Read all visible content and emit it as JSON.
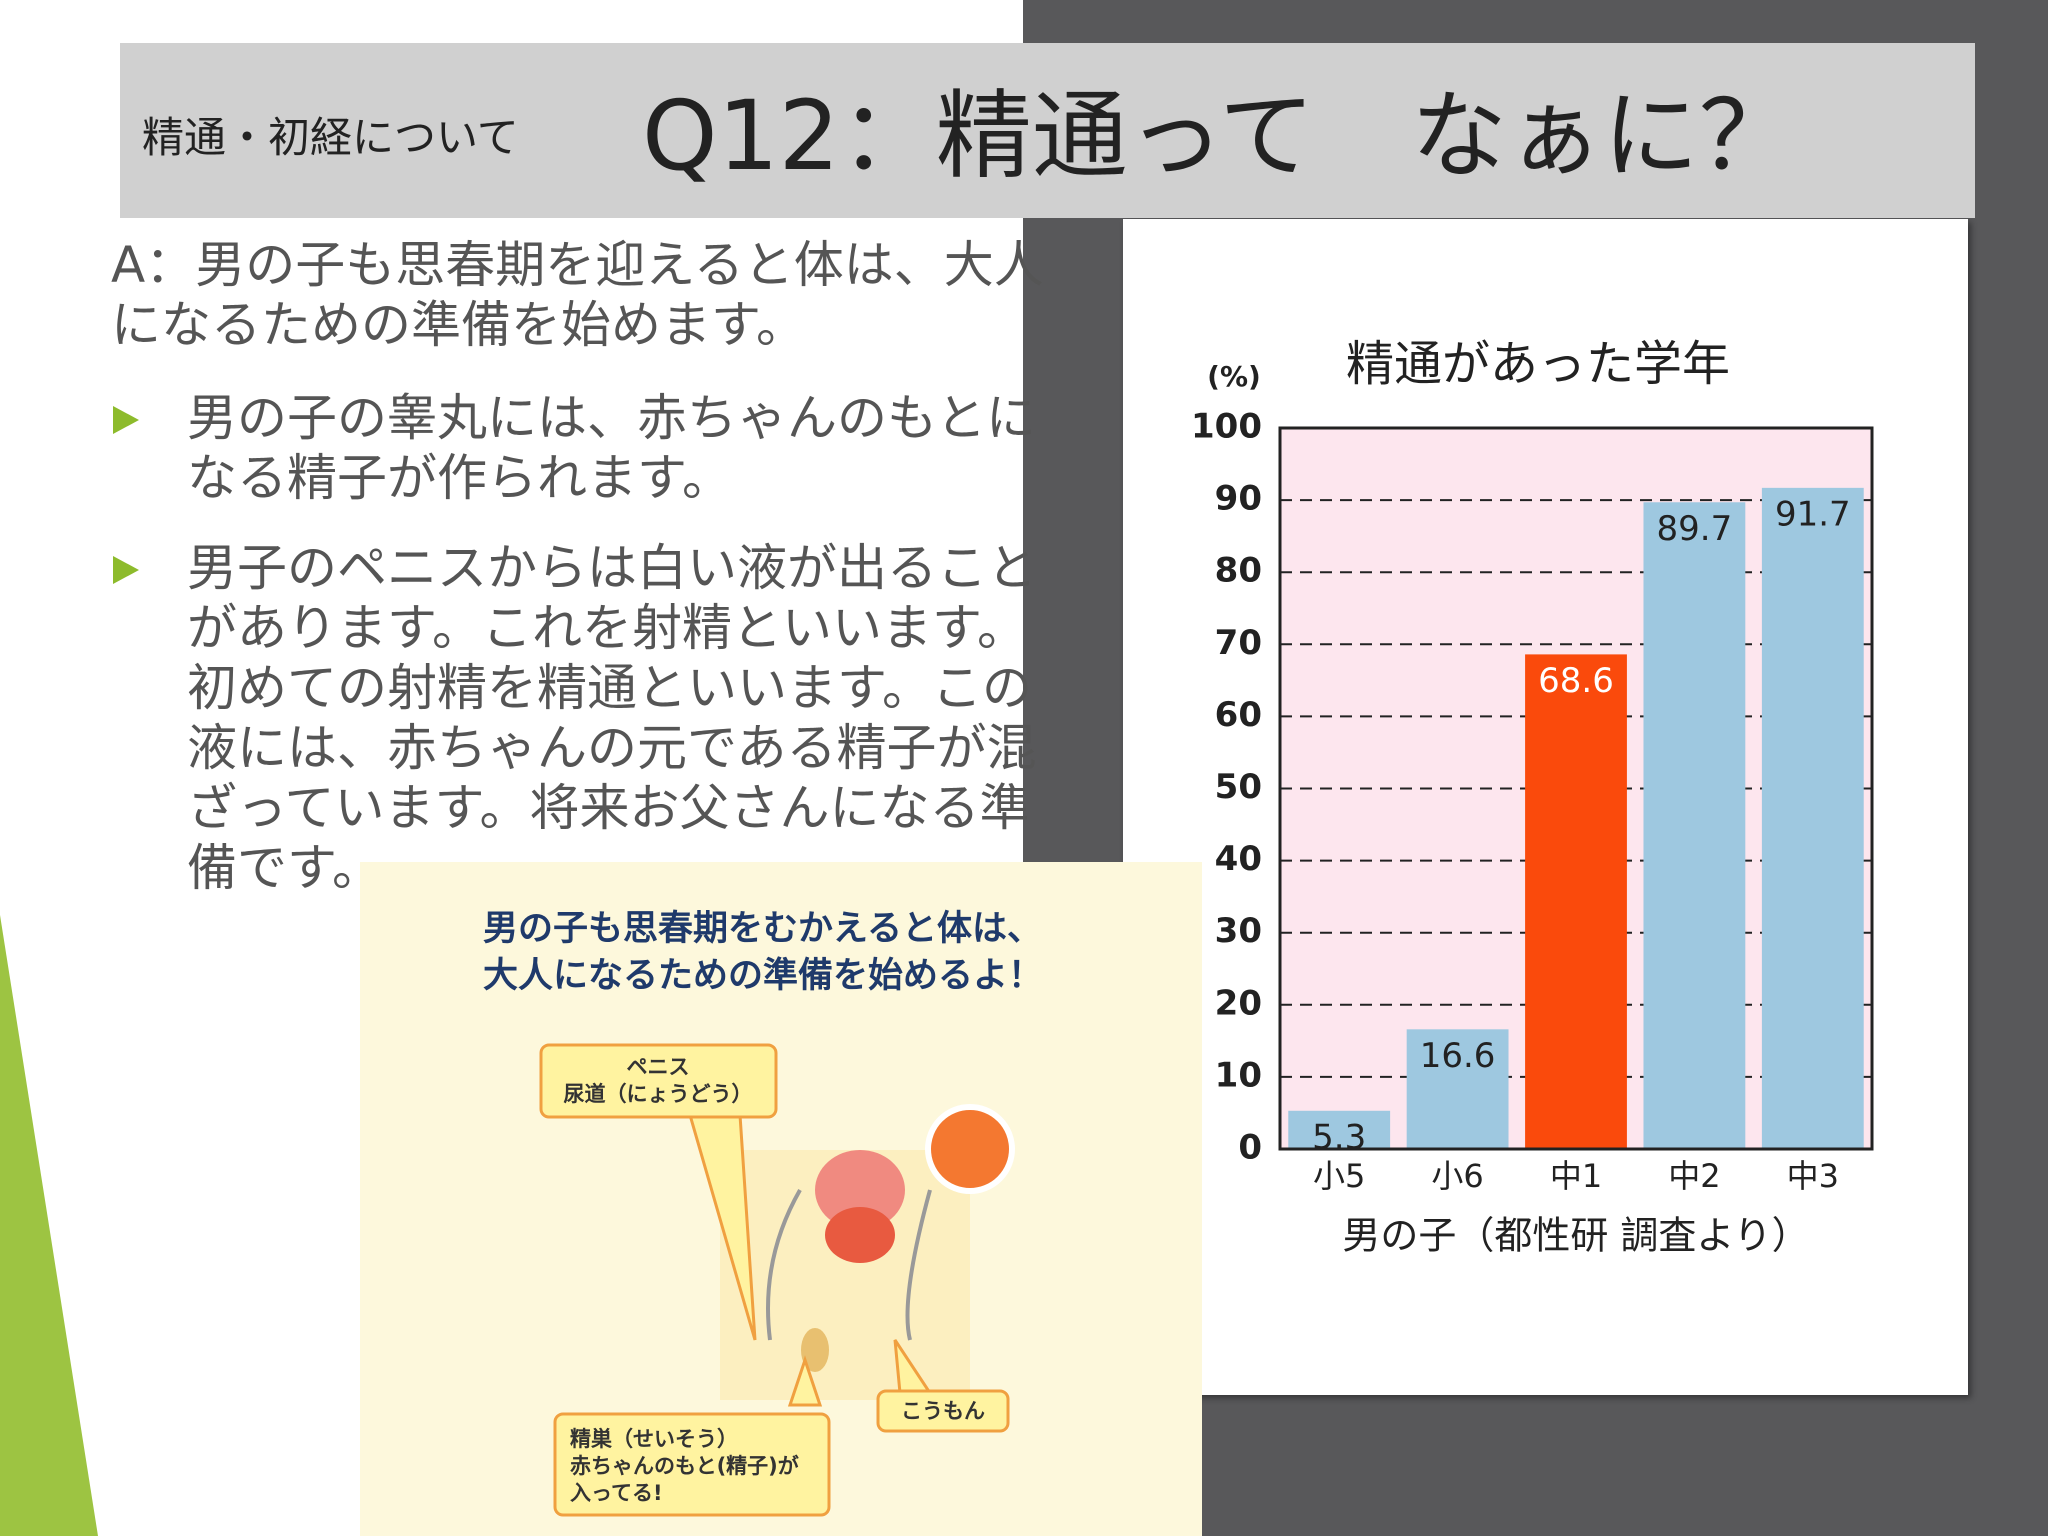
{
  "header": {
    "section": "精通・初経について",
    "title": "Q12：精通って　なぁに？"
  },
  "body": {
    "intro": [
      "A：男の子も思春期を迎えると体は、大人",
      "になるための準備を始めます。"
    ],
    "bullets": [
      [
        "男の子の睾丸には、赤ちゃんのもとに",
        "なる精子が作られます。"
      ],
      [
        "男子のペニスからは白い液が出ること",
        "があります。これを射精といいます。",
        "初めての射精を精通といいます。この",
        "液には、赤ちゃんの元である精子が混",
        "ざっています。将来お父さんになる準",
        "備です。"
      ]
    ]
  },
  "illustration": {
    "heading": [
      "男の子も思春期をむかえると体は、",
      "大人になるための準備を始めるよ！"
    ],
    "labels": [
      [
        "ペニス",
        "尿道（にょうどう）"
      ],
      [
        "こうもん"
      ],
      [
        "精巣（せいそう）",
        "赤ちゃんのもと(精子)が",
        "入ってる!"
      ]
    ]
  },
  "chart_data": {
    "type": "bar",
    "title": "精通があった学年",
    "y_unit": "(%)",
    "categories": [
      "小5",
      "小6",
      "中1",
      "中2",
      "中3"
    ],
    "values": [
      5.3,
      16.6,
      68.6,
      89.7,
      91.7
    ],
    "colors": [
      "#9ec8e0",
      "#9ec8e0",
      "#fa4a0c",
      "#9ec8e0",
      "#9ec8e0"
    ],
    "label_colors": [
      "#222222",
      "#222222",
      "#ffffff",
      "#222222",
      "#222222"
    ],
    "ylim": [
      0,
      100
    ],
    "yticks": [
      0,
      10,
      20,
      30,
      40,
      50,
      60,
      70,
      80,
      90,
      100
    ],
    "grid": true,
    "background": "#fde6ee",
    "xlabel": "男の子（都性研 調査より）"
  }
}
